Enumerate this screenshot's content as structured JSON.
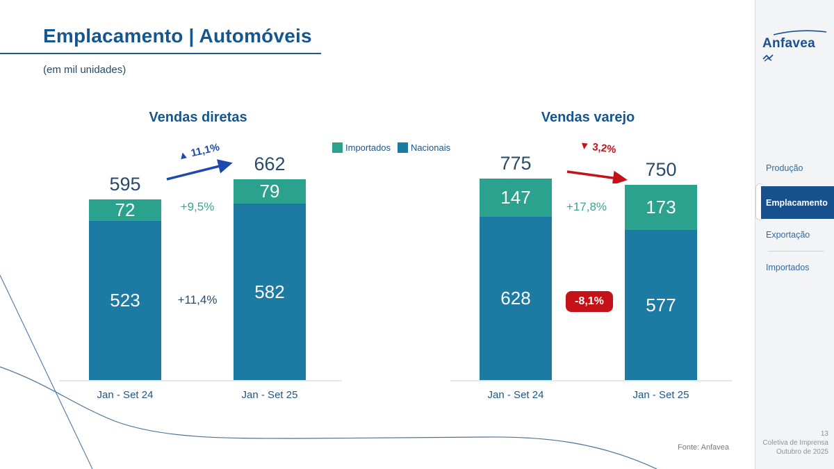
{
  "slide": {
    "title": "Emplacamento | Automóveis",
    "unit_note": "(em mil unidades)",
    "source": "Fonte: Anfavea",
    "page_number": "13",
    "event": "Coletiva de Imprensa",
    "date": "Outubro de 2025"
  },
  "brand": {
    "name": "Anfavea"
  },
  "legend": {
    "items": [
      {
        "label": "Importados",
        "color": "#2aa28e"
      },
      {
        "label": "Nacionais",
        "color": "#1d7aa3"
      }
    ]
  },
  "sidebar": {
    "items": [
      {
        "label": "Produção",
        "active": false
      },
      {
        "label": "Emplacamento",
        "active": true
      },
      {
        "label": "Exportação",
        "active": false
      },
      {
        "label": "Importados",
        "active": false
      }
    ]
  },
  "chart_data": [
    {
      "type": "bar",
      "stacked": true,
      "title": "Vendas diretas",
      "unit": "mil unidades",
      "categories": [
        "Jan - Set 24",
        "Jan - Set 25"
      ],
      "series": [
        {
          "name": "Importados",
          "color": "#2aa28e",
          "values": [
            72,
            79
          ]
        },
        {
          "name": "Nacionais",
          "color": "#1d7aa3",
          "values": [
            523,
            582
          ]
        }
      ],
      "totals": [
        595,
        662
      ],
      "total_change": {
        "label": "▲ 11,1%",
        "direction": "up",
        "color": "#1e49ae"
      },
      "segment_changes": [
        {
          "series": "Importados",
          "label": "+9,5%"
        },
        {
          "series": "Nacionais",
          "label": "+11,4%"
        }
      ]
    },
    {
      "type": "bar",
      "stacked": true,
      "title": "Vendas varejo",
      "unit": "mil unidades",
      "categories": [
        "Jan - Set 24",
        "Jan - Set 25"
      ],
      "series": [
        {
          "name": "Importados",
          "color": "#2aa28e",
          "values": [
            147,
            173
          ]
        },
        {
          "name": "Nacionais",
          "color": "#1d7aa3",
          "values": [
            628,
            577
          ]
        }
      ],
      "totals": [
        775,
        750
      ],
      "total_change": {
        "label": "▼ 3,2%",
        "direction": "down",
        "color": "#c51219"
      },
      "segment_changes": [
        {
          "series": "Importados",
          "label": "+17,8%"
        },
        {
          "series": "Nacionais",
          "label": "-8,1%",
          "badge": true
        }
      ]
    }
  ]
}
